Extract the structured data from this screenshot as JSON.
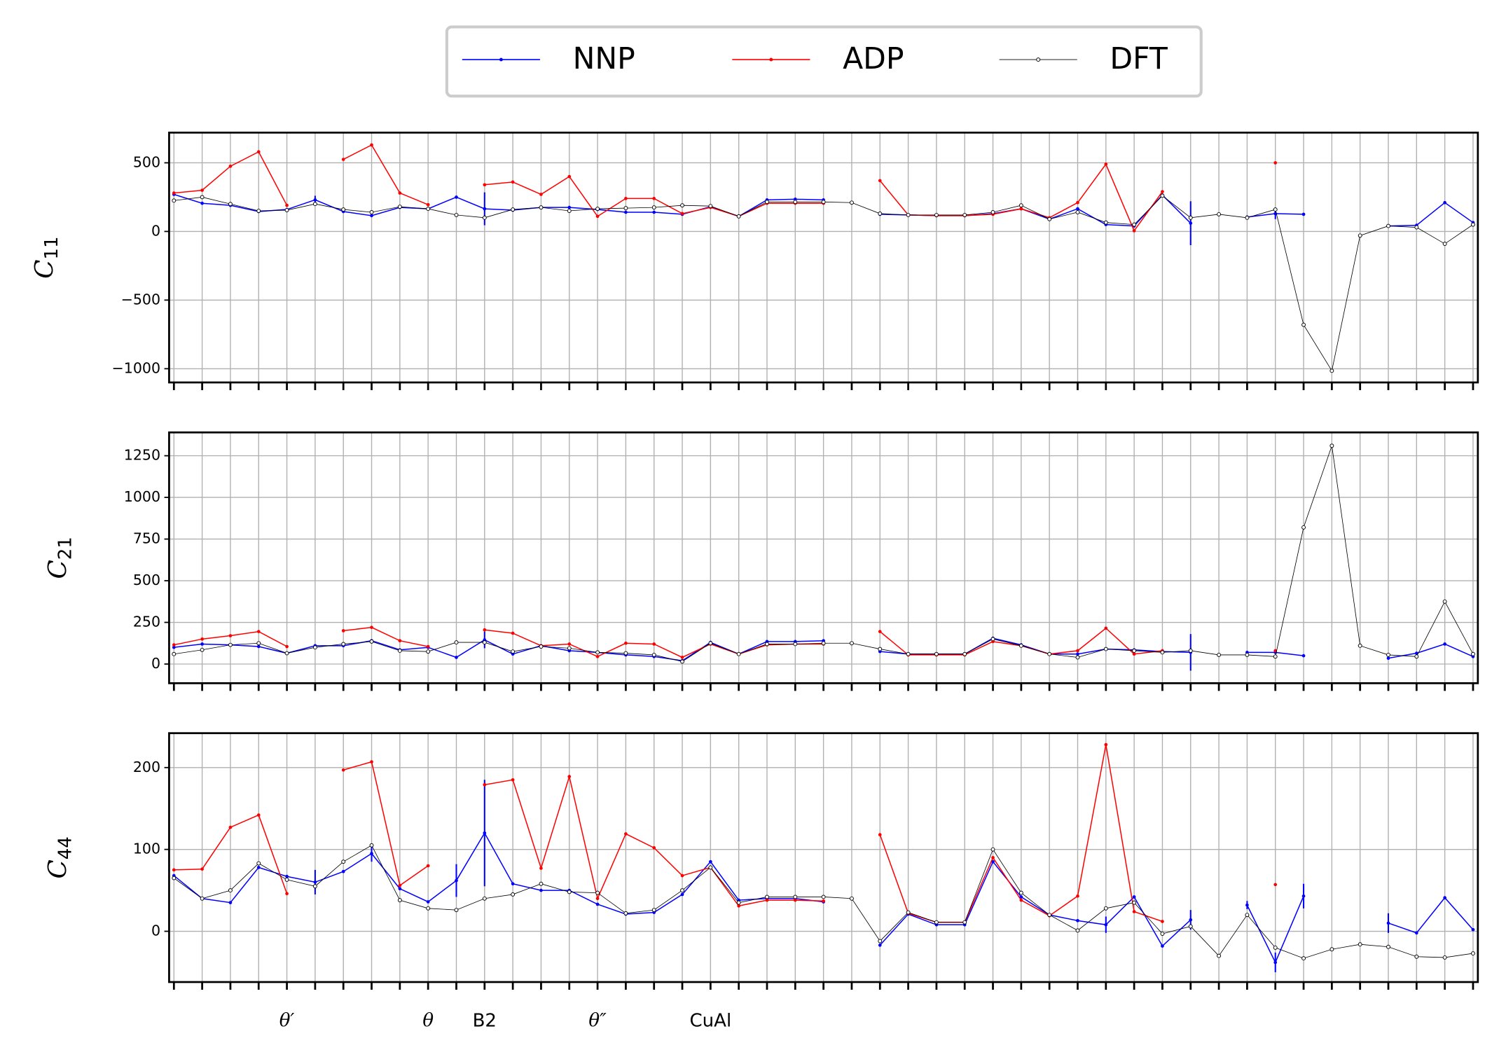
{
  "legend": [
    "NNP",
    "ADP",
    "DFT"
  ],
  "categories": [
    null,
    null,
    null,
    null,
    "θ′",
    null,
    null,
    null,
    null,
    "θ",
    null,
    "B2",
    null,
    null,
    null,
    "θ″",
    null,
    null,
    null,
    "CuAl",
    null,
    null,
    null,
    null,
    null,
    null,
    null,
    null,
    null,
    null,
    null,
    null,
    null,
    null,
    null,
    null,
    null,
    null,
    null,
    null,
    null,
    null,
    null,
    null,
    null,
    null,
    null
  ],
  "grid": true,
  "chart_data": [
    {
      "type": "line",
      "ylabel": "C11",
      "ylim": [
        -1100,
        720
      ],
      "yticks": [
        {
          "value": -1000,
          "label": "−1000"
        },
        {
          "value": -500,
          "label": "−500"
        },
        0,
        500
      ],
      "series": [
        {
          "color": "#0000ff",
          "values": [
            270,
            205,
            190,
            145,
            160,
            230,
            145,
            115,
            175,
            165,
            250,
            165,
            155,
            175,
            175,
            160,
            140,
            140,
            125,
            180,
            110,
            230,
            235,
            230,
            null,
            125,
            120,
            115,
            115,
            130,
            165,
            90,
            165,
            50,
            40,
            265,
            60,
            null,
            105,
            130,
            125,
            null,
            null,
            40,
            45,
            210,
            65
          ],
          "errors": [
            null,
            null,
            null,
            null,
            null,
            30,
            null,
            null,
            null,
            null,
            null,
            120,
            null,
            null,
            null,
            null,
            null,
            null,
            null,
            null,
            null,
            null,
            null,
            null,
            null,
            null,
            null,
            null,
            null,
            null,
            null,
            null,
            null,
            null,
            null,
            null,
            160,
            null,
            null,
            40,
            null,
            null,
            null,
            null,
            null,
            null,
            null
          ]
        },
        {
          "color": "#ff0000",
          "values": [
            280,
            300,
            475,
            580,
            190,
            null,
            525,
            630,
            280,
            195,
            null,
            340,
            360,
            270,
            400,
            110,
            240,
            240,
            130,
            175,
            110,
            205,
            205,
            205,
            null,
            370,
            120,
            115,
            115,
            125,
            165,
            100,
            210,
            490,
            5,
            290,
            null,
            null,
            null,
            500,
            null,
            null,
            null,
            null,
            null,
            null,
            null
          ]
        },
        {
          "color": "#000000",
          "values": [
            225,
            250,
            200,
            150,
            155,
            200,
            160,
            140,
            180,
            165,
            120,
            100,
            160,
            175,
            150,
            165,
            170,
            175,
            190,
            185,
            110,
            215,
            215,
            215,
            210,
            130,
            120,
            120,
            120,
            140,
            190,
            90,
            140,
            65,
            50,
            260,
            100,
            125,
            100,
            160,
            -680,
            -1015,
            -30,
            40,
            30,
            -90,
            50
          ]
        }
      ]
    },
    {
      "type": "line",
      "ylabel": "C21",
      "ylim": [
        -115,
        1390
      ],
      "yticks": [
        0,
        250,
        500,
        750,
        1000,
        1250
      ],
      "series": [
        {
          "color": "#0000ff",
          "values": [
            100,
            120,
            115,
            105,
            65,
            110,
            110,
            140,
            85,
            100,
            40,
            145,
            60,
            110,
            80,
            70,
            55,
            45,
            20,
            130,
            60,
            135,
            135,
            140,
            null,
            75,
            60,
            60,
            60,
            155,
            115,
            60,
            60,
            90,
            85,
            75,
            70,
            null,
            70,
            70,
            50,
            null,
            null,
            35,
            65,
            120,
            45
          ],
          "errors": [
            null,
            null,
            null,
            null,
            null,
            null,
            null,
            null,
            null,
            null,
            null,
            50,
            null,
            null,
            null,
            null,
            null,
            null,
            null,
            null,
            null,
            null,
            null,
            null,
            null,
            null,
            null,
            null,
            null,
            null,
            null,
            null,
            null,
            null,
            null,
            null,
            110,
            null,
            null,
            null,
            null,
            null,
            null,
            null,
            null,
            null,
            null
          ]
        },
        {
          "color": "#ff0000",
          "values": [
            115,
            150,
            170,
            195,
            105,
            null,
            200,
            220,
            140,
            105,
            null,
            205,
            185,
            110,
            120,
            45,
            125,
            120,
            40,
            120,
            60,
            115,
            120,
            120,
            null,
            195,
            55,
            55,
            55,
            135,
            110,
            60,
            80,
            215,
            60,
            80,
            null,
            null,
            null,
            80,
            null,
            null,
            null,
            null,
            null,
            null,
            null
          ]
        },
        {
          "color": "#000000",
          "values": [
            60,
            85,
            115,
            125,
            65,
            100,
            120,
            135,
            80,
            75,
            130,
            130,
            75,
            105,
            95,
            70,
            65,
            55,
            15,
            125,
            60,
            120,
            120,
            125,
            125,
            90,
            60,
            60,
            60,
            150,
            110,
            60,
            40,
            90,
            80,
            70,
            80,
            55,
            55,
            45,
            820,
            1310,
            110,
            55,
            45,
            375,
            60
          ]
        }
      ]
    },
    {
      "type": "line",
      "ylabel": "C44",
      "ylim": [
        -62,
        242
      ],
      "yticks": [
        0,
        100,
        200
      ],
      "series": [
        {
          "color": "#0000ff",
          "values": [
            68,
            40,
            35,
            78,
            67,
            60,
            73,
            95,
            52,
            36,
            62,
            120,
            58,
            50,
            50,
            33,
            21,
            23,
            45,
            85,
            38,
            40,
            40,
            36,
            null,
            -17,
            21,
            8,
            8,
            85,
            42,
            20,
            13,
            8,
            42,
            -18,
            14,
            null,
            32,
            -38,
            43,
            null,
            null,
            10,
            -2,
            41,
            2
          ],
          "errors": [
            null,
            null,
            null,
            null,
            null,
            15,
            null,
            10,
            null,
            null,
            20,
            65,
            null,
            null,
            null,
            null,
            null,
            null,
            null,
            null,
            null,
            null,
            null,
            null,
            null,
            null,
            null,
            null,
            null,
            null,
            null,
            null,
            null,
            10,
            null,
            null,
            12,
            null,
            5,
            12,
            15,
            null,
            null,
            12,
            null,
            null,
            null
          ]
        },
        {
          "color": "#ff0000",
          "values": [
            75,
            76,
            127,
            142,
            46,
            null,
            197,
            207,
            56,
            80,
            null,
            179,
            185,
            77,
            189,
            40,
            119,
            102,
            68,
            78,
            31,
            38,
            38,
            37,
            null,
            118,
            22,
            11,
            11,
            90,
            38,
            19,
            43,
            228,
            24,
            12,
            null,
            null,
            null,
            57,
            null,
            null,
            null,
            null,
            null,
            null,
            null
          ]
        },
        {
          "color": "#000000",
          "values": [
            65,
            40,
            50,
            83,
            63,
            55,
            85,
            105,
            38,
            28,
            26,
            40,
            45,
            58,
            48,
            47,
            22,
            26,
            50,
            78,
            35,
            42,
            42,
            42,
            40,
            -12,
            23,
            11,
            11,
            100,
            47,
            20,
            1,
            28,
            35,
            -3,
            6,
            -30,
            20,
            -20,
            -33,
            -22,
            -16,
            -19,
            -31,
            -32,
            -27
          ]
        }
      ]
    }
  ]
}
